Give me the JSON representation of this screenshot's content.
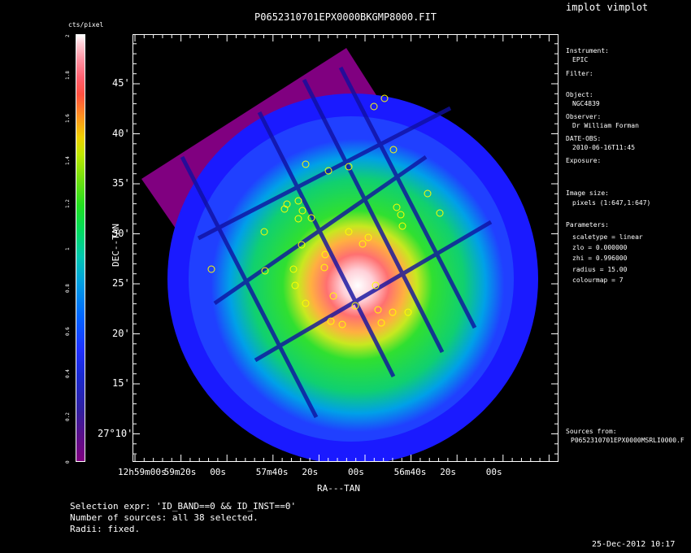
{
  "window_title": "implot vimplot",
  "plot_title": "P0652310701EPX0000BKGMP8000.FIT",
  "colorbar": {
    "title": "cts/pixel",
    "ticks": [
      "0",
      "0.2",
      "0.4",
      "0.6",
      "0.8",
      "1",
      "1.2",
      "1.4",
      "1.6",
      "1.8",
      "2"
    ]
  },
  "axes": {
    "xlabel": "RA---TAN",
    "ylabel": "DEC--TAN",
    "x_ticks": [
      "12h59m00s",
      "59m20s",
      "00s",
      "57m40s",
      "20s",
      "00s",
      "56m40s",
      "20s",
      "00s"
    ],
    "y_ticks": [
      "45'",
      "40'",
      "35'",
      "30'",
      "25'",
      "20'",
      "15'",
      "27°10'"
    ]
  },
  "info": {
    "instrument_label": "Instrument:",
    "instrument": "EPIC",
    "filter_label": "Filter:",
    "object_label": "Object:",
    "object": "NGC4839",
    "observer_label": "Observer:",
    "observer": "Dr William Forman",
    "date_label": "DATE-OBS:",
    "date": "2010-06-16T11:45",
    "exposure_label": "Exposure:",
    "image_size_label": "Image size:",
    "image_size": "pixels (1:647,1:647)",
    "parameters_label": "Parameters:",
    "parameters": [
      "scaletype = linear",
      "zlo = 0.000000",
      "zhi = 0.996000",
      "radius = 15.00",
      "colourmap = 7"
    ],
    "sources_label": "Sources from:",
    "sources_file": "P0652310701EPX0000MSRLI0000.F"
  },
  "footer": {
    "selection": "Selection expr: 'ID_BAND==0 && ID_INST==0'",
    "count": "Number of sources: all 38 selected.",
    "radii": "Radii: fixed.",
    "timestamp": "25-Dec-2012 10:17"
  }
}
